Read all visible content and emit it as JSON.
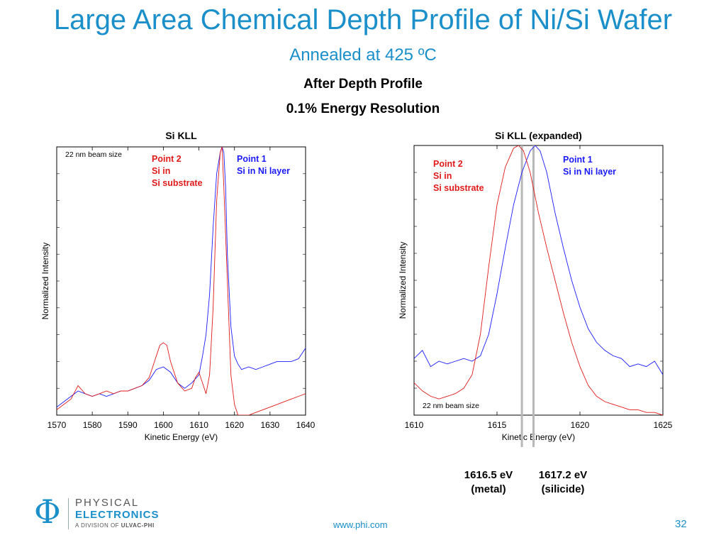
{
  "slide": {
    "title": "Large Area Chemical Depth Profile of Ni/Si Wafer",
    "subtitle": "Annealed at 425 ºC",
    "heading1": "After Depth Profile",
    "heading2": "0.1% Energy Resolution",
    "footer_link": "www.phi.com",
    "page_number": "32"
  },
  "logo": {
    "symbol": "Φ",
    "line1": "PHYSICAL",
    "line2": "ELECTRONICS",
    "line3_prefix": "A DIVISION OF ",
    "line3_brand": "ULVAC-PHI"
  },
  "annotations": [
    {
      "value": "1616.5 eV",
      "label": "(metal)"
    },
    {
      "value": "1617.2 eV",
      "label": "(silicide)"
    }
  ],
  "colors": {
    "accent": "#1a8fc9",
    "point1": "#1a1aff",
    "point2": "#e01a1a",
    "marker": "#b8b8b8"
  },
  "chart_data": [
    {
      "type": "line",
      "title": "Si KLL",
      "xlabel": "Kinetic Energy (eV)",
      "ylabel": "Normalized Intensity",
      "xlim": [
        1570,
        1640
      ],
      "ylim": [
        0,
        1
      ],
      "xticks": [
        1570,
        1580,
        1590,
        1600,
        1610,
        1620,
        1630,
        1640
      ],
      "y_minor_ticks": 10,
      "note": "22 nm beam size",
      "labels": [
        {
          "lines": [
            "Point 2",
            "Si in",
            "Si substrate"
          ],
          "series": 1
        },
        {
          "lines": [
            "Point 1",
            "Si in Ni layer"
          ],
          "series": 0
        }
      ],
      "series": [
        {
          "name": "Point 1 Si in Ni layer",
          "color": "#1a1aff",
          "x": [
            1570,
            1572,
            1574,
            1576,
            1578,
            1580,
            1582,
            1584,
            1586,
            1588,
            1590,
            1592,
            1594,
            1596,
            1598,
            1600,
            1602,
            1604,
            1606,
            1608,
            1610,
            1611,
            1612,
            1613,
            1614,
            1615,
            1616,
            1616.5,
            1617,
            1617.5,
            1618,
            1619,
            1620,
            1621,
            1622,
            1624,
            1626,
            1628,
            1630,
            1632,
            1634,
            1636,
            1638,
            1640
          ],
          "y": [
            0.03,
            0.05,
            0.07,
            0.09,
            0.08,
            0.07,
            0.08,
            0.07,
            0.08,
            0.09,
            0.09,
            0.1,
            0.11,
            0.13,
            0.17,
            0.18,
            0.16,
            0.12,
            0.1,
            0.12,
            0.15,
            0.22,
            0.3,
            0.45,
            0.7,
            0.9,
            0.98,
            1.0,
            0.98,
            0.85,
            0.6,
            0.33,
            0.22,
            0.19,
            0.17,
            0.18,
            0.17,
            0.18,
            0.19,
            0.2,
            0.2,
            0.2,
            0.21,
            0.25
          ]
        },
        {
          "name": "Point 2 Si in Si substrate",
          "color": "#e01a1a",
          "x": [
            1570,
            1572,
            1574,
            1576,
            1578,
            1580,
            1582,
            1584,
            1586,
            1588,
            1590,
            1592,
            1594,
            1596,
            1598,
            1599,
            1600,
            1601,
            1602,
            1604,
            1606,
            1608,
            1609,
            1610,
            1611,
            1612,
            1613,
            1614,
            1615,
            1616,
            1616.5,
            1617,
            1618,
            1619,
            1620,
            1621,
            1622,
            1624,
            1626,
            1628,
            1630,
            1632,
            1634,
            1636,
            1638,
            1640
          ],
          "y": [
            0.02,
            0.04,
            0.06,
            0.11,
            0.08,
            0.07,
            0.08,
            0.09,
            0.08,
            0.09,
            0.09,
            0.1,
            0.11,
            0.14,
            0.22,
            0.26,
            0.27,
            0.26,
            0.2,
            0.12,
            0.09,
            0.1,
            0.14,
            0.16,
            0.12,
            0.08,
            0.15,
            0.4,
            0.8,
            0.98,
            1.0,
            0.85,
            0.5,
            0.15,
            0.04,
            0.0,
            0.0,
            0.0,
            0.01,
            0.02,
            0.03,
            0.04,
            0.05,
            0.06,
            0.07,
            0.08
          ]
        }
      ]
    },
    {
      "type": "line",
      "title": "Si KLL (expanded)",
      "xlabel": "Kinetic Energy (eV)",
      "ylabel": "Normalized Intensity",
      "xlim": [
        1610,
        1625
      ],
      "ylim": [
        0,
        1
      ],
      "xticks": [
        1610,
        1615,
        1620,
        1625
      ],
      "y_minor_ticks": 10,
      "note": "22 nm beam size",
      "markers": [
        1616.5,
        1617.2
      ],
      "labels": [
        {
          "lines": [
            "Point 2",
            "Si in",
            "Si substrate"
          ],
          "series": 1
        },
        {
          "lines": [
            "Point 1",
            "Si in Ni layer"
          ],
          "series": 0
        }
      ],
      "series": [
        {
          "name": "Point 1 Si in Ni layer",
          "color": "#1a1aff",
          "x": [
            1610,
            1610.5,
            1611,
            1611.5,
            1612,
            1612.5,
            1613,
            1613.5,
            1614,
            1614.5,
            1615,
            1615.5,
            1616,
            1616.5,
            1617,
            1617.3,
            1617.6,
            1618,
            1618.5,
            1619,
            1619.5,
            1620,
            1620.5,
            1621,
            1621.5,
            1622,
            1622.5,
            1623,
            1623.5,
            1624,
            1624.5,
            1625
          ],
          "y": [
            0.21,
            0.24,
            0.18,
            0.2,
            0.19,
            0.2,
            0.21,
            0.2,
            0.22,
            0.3,
            0.45,
            0.62,
            0.78,
            0.9,
            0.98,
            1.0,
            0.98,
            0.9,
            0.75,
            0.62,
            0.5,
            0.4,
            0.32,
            0.27,
            0.24,
            0.22,
            0.21,
            0.18,
            0.19,
            0.18,
            0.2,
            0.15
          ]
        },
        {
          "name": "Point 2 Si in Si substrate",
          "color": "#e01a1a",
          "x": [
            1610,
            1610.5,
            1611,
            1611.5,
            1612,
            1612.5,
            1613,
            1613.5,
            1614,
            1614.5,
            1615,
            1615.5,
            1616,
            1616.3,
            1616.6,
            1617,
            1617.5,
            1618,
            1618.5,
            1619,
            1619.5,
            1620,
            1620.5,
            1621,
            1621.5,
            1622,
            1622.5,
            1623,
            1623.5,
            1624,
            1624.5,
            1625
          ],
          "y": [
            0.12,
            0.09,
            0.07,
            0.06,
            0.07,
            0.08,
            0.1,
            0.15,
            0.3,
            0.55,
            0.78,
            0.92,
            0.99,
            1.0,
            0.98,
            0.9,
            0.75,
            0.62,
            0.5,
            0.38,
            0.27,
            0.18,
            0.11,
            0.07,
            0.05,
            0.04,
            0.03,
            0.02,
            0.02,
            0.01,
            0.01,
            0.0
          ]
        }
      ]
    }
  ]
}
